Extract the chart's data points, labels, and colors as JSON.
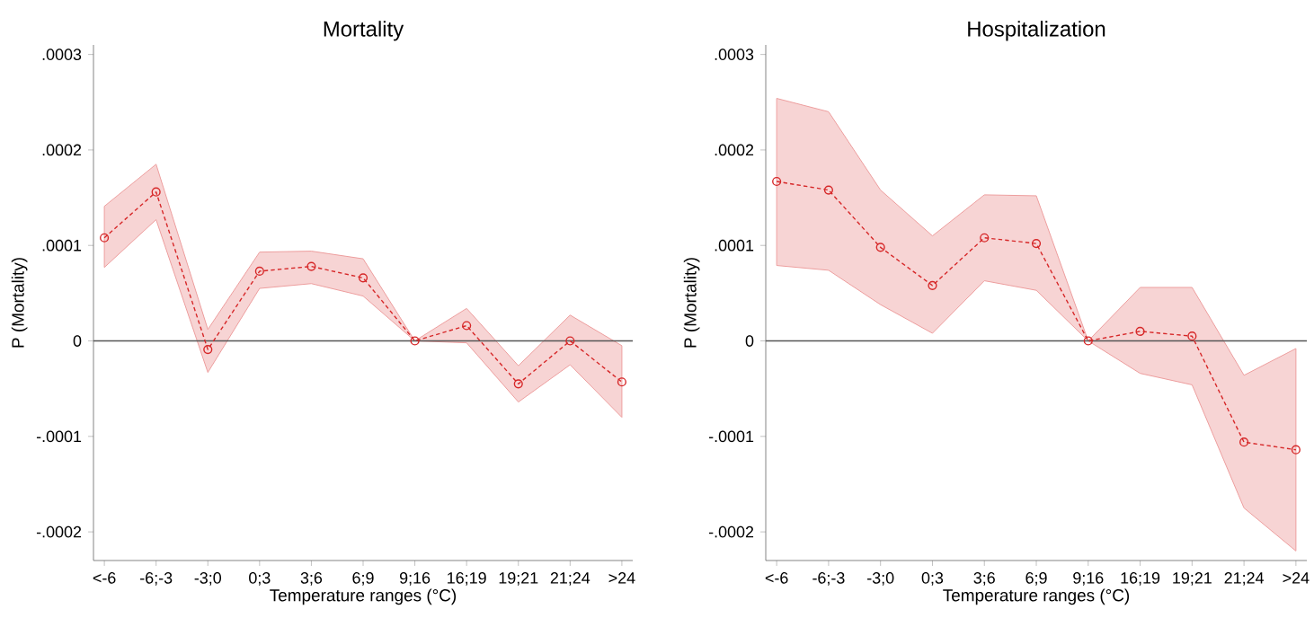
{
  "chart_data": [
    {
      "type": "line",
      "title": "Mortality",
      "xlabel": "Temperature ranges (°C)",
      "ylabel": "P (Mortality)",
      "categories": [
        "<-6",
        "-6;-3",
        "-3;0",
        "0;3",
        "3;6",
        "6;9",
        "9;16",
        "16;19",
        "19;21",
        "21;24",
        ">24"
      ],
      "ylim": [
        -0.00023,
        0.00031
      ],
      "yticks": [
        {
          "value": -0.0002,
          "label": "-.0002"
        },
        {
          "value": -0.0001,
          "label": "-.0001"
        },
        0,
        {
          "value": 0.0001,
          "label": ".0001"
        },
        {
          "value": 0.0002,
          "label": ".0002"
        },
        {
          "value": 0.0003,
          "label": ".0003"
        }
      ],
      "marker": "circle",
      "line_style": "dashed",
      "grid": false,
      "ref_lines": [
        {
          "axis": "y",
          "value": 0,
          "color": "#555555"
        }
      ],
      "series": [
        {
          "color": "#d62728",
          "values": [
            0.000108,
            0.000156,
            -9e-06,
            7.3e-05,
            7.8e-05,
            6.6e-05,
            0,
            1.6e-05,
            -4.5e-05,
            0,
            -4.3e-05
          ],
          "lower": [
            7.7e-05,
            0.000127,
            -3.3e-05,
            5.5e-05,
            6e-05,
            4.7e-05,
            0,
            -2e-06,
            -6.4e-05,
            -2.5e-05,
            -8e-05
          ],
          "upper": [
            0.000141,
            0.000185,
            1.2e-05,
            9.3e-05,
            9.4e-05,
            8.6e-05,
            0,
            3.4e-05,
            -2.6e-05,
            2.7e-05,
            -5e-06
          ]
        }
      ]
    },
    {
      "type": "line",
      "title": "Hospitalization",
      "xlabel": "Temperature ranges (°C)",
      "ylabel": "P (Mortality)",
      "categories": [
        "<-6",
        "-6;-3",
        "-3;0",
        "0;3",
        "3;6",
        "6;9",
        "9;16",
        "16;19",
        "19;21",
        "21;24",
        ">24"
      ],
      "ylim": [
        -0.00023,
        0.00031
      ],
      "yticks": [
        {
          "value": -0.0002,
          "label": "-.0002"
        },
        {
          "value": -0.0001,
          "label": "-.0001"
        },
        0,
        {
          "value": 0.0001,
          "label": ".0001"
        },
        {
          "value": 0.0002,
          "label": ".0002"
        },
        {
          "value": 0.0003,
          "label": ".0003"
        }
      ],
      "marker": "circle",
      "line_style": "dashed",
      "grid": false,
      "ref_lines": [
        {
          "axis": "y",
          "value": 0,
          "color": "#555555"
        }
      ],
      "series": [
        {
          "color": "#d62728",
          "values": [
            0.000167,
            0.000158,
            9.8e-05,
            5.8e-05,
            0.000108,
            0.000102,
            0,
            1e-05,
            5e-06,
            -0.000106,
            -0.000114
          ],
          "lower": [
            7.9e-05,
            7.4e-05,
            3.8e-05,
            8e-06,
            6.3e-05,
            5.3e-05,
            0,
            -3.4e-05,
            -4.6e-05,
            -0.000175,
            -0.00022
          ],
          "upper": [
            0.000254,
            0.00024,
            0.000158,
            0.00011,
            0.000153,
            0.000152,
            0,
            5.6e-05,
            5.6e-05,
            -3.6e-05,
            -8e-06
          ]
        }
      ]
    }
  ]
}
